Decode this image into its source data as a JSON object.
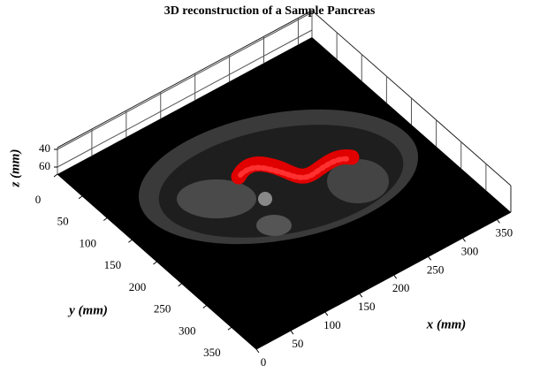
{
  "chart_data": {
    "type": "surface3d",
    "title": "3D reconstruction of a Sample Pancreas",
    "xlabel": "x (mm)",
    "ylabel": "y (mm)",
    "zlabel": "z (mm)",
    "xlim": [
      0,
      370
    ],
    "ylim": [
      0,
      400
    ],
    "zlim": [
      68,
      38
    ],
    "xticks": [
      0,
      50,
      100,
      150,
      200,
      250,
      300,
      350
    ],
    "yticks": [
      0,
      50,
      100,
      150,
      200,
      250,
      300,
      350
    ],
    "zticks": [
      40,
      60
    ],
    "grid": true
  }
}
